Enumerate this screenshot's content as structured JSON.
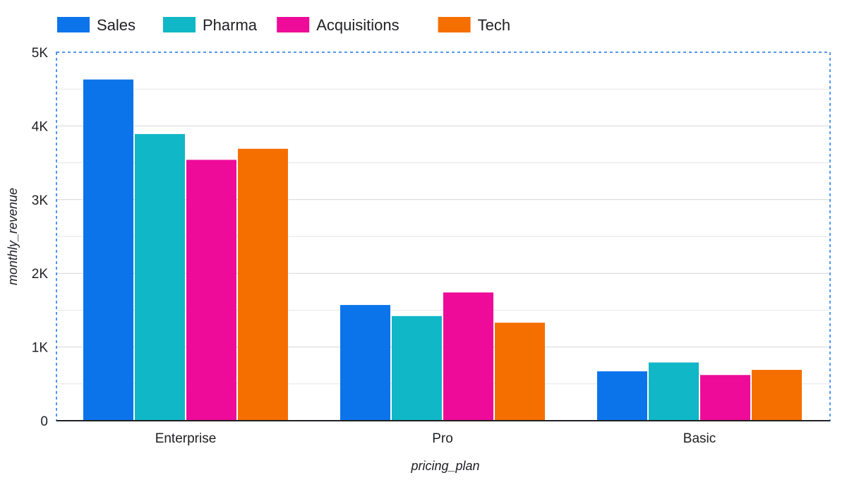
{
  "chart_data": {
    "type": "bar",
    "categories": [
      "Enterprise",
      "Pro",
      "Basic"
    ],
    "series": [
      {
        "name": "Sales",
        "color": "#0b74eb",
        "values": [
          4630,
          1570,
          670
        ]
      },
      {
        "name": "Pharma",
        "color": "#10b7c7",
        "values": [
          3890,
          1420,
          790
        ]
      },
      {
        "name": "Acquisitions",
        "color": "#ee0b99",
        "values": [
          3540,
          1740,
          620
        ]
      },
      {
        "name": "Tech",
        "color": "#f56f00",
        "values": [
          3690,
          1330,
          690
        ]
      }
    ],
    "xlabel": "pricing_plan",
    "ylabel": "monthly_revenue",
    "ylim": [
      0,
      5000
    ],
    "y_ticks": [
      {
        "value": 0,
        "label": "0"
      },
      {
        "value": 1000,
        "label": "1K"
      },
      {
        "value": 2000,
        "label": "2K"
      },
      {
        "value": 3000,
        "label": "3K"
      },
      {
        "value": 4000,
        "label": "4K"
      },
      {
        "value": 5000,
        "label": "5K"
      }
    ],
    "minor_grid_values": [
      500,
      1500,
      2500,
      3500,
      4500
    ],
    "grid": true,
    "legend_position": "top-left"
  }
}
